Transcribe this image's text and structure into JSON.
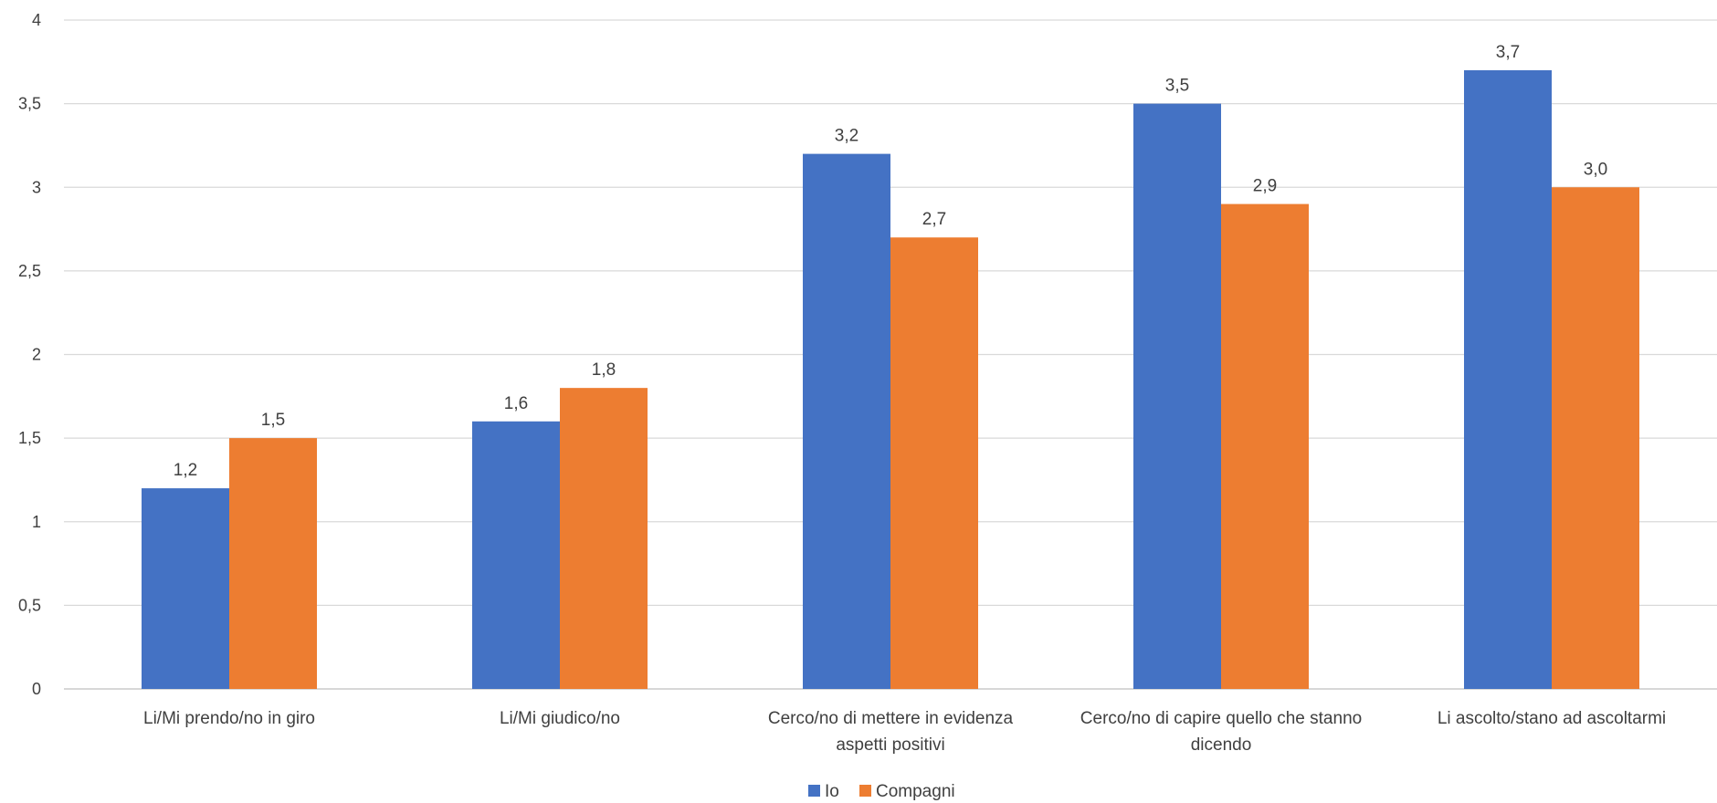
{
  "chart_data": {
    "type": "bar",
    "categories": [
      [
        "Li/Mi prendo/no in giro"
      ],
      [
        "Li/Mi giudico/no"
      ],
      [
        "Cerco/no di mettere in evidenza",
        "aspetti positivi"
      ],
      [
        "Cerco/no di capire quello che stanno",
        "dicendo"
      ],
      [
        "Li ascolto/stano ad ascoltarmi"
      ]
    ],
    "series": [
      {
        "name": "Io",
        "color": "#4472C4",
        "values": [
          1.2,
          1.6,
          3.2,
          3.5,
          3.7
        ],
        "labels": [
          "1,2",
          "1,6",
          "3,2",
          "3,5",
          "3,7"
        ]
      },
      {
        "name": "Compagni",
        "color": "#ED7D31",
        "values": [
          1.5,
          1.8,
          2.7,
          2.9,
          3.0
        ],
        "labels": [
          "1,5",
          "1,8",
          "2,7",
          "2,9",
          "3,0"
        ]
      }
    ],
    "ylim": [
      0,
      4
    ],
    "yticks": [
      "0",
      "0,5",
      "1",
      "1,5",
      "2",
      "2,5",
      "3",
      "3,5",
      "4"
    ],
    "grid": true,
    "legend_position": "bottom"
  }
}
